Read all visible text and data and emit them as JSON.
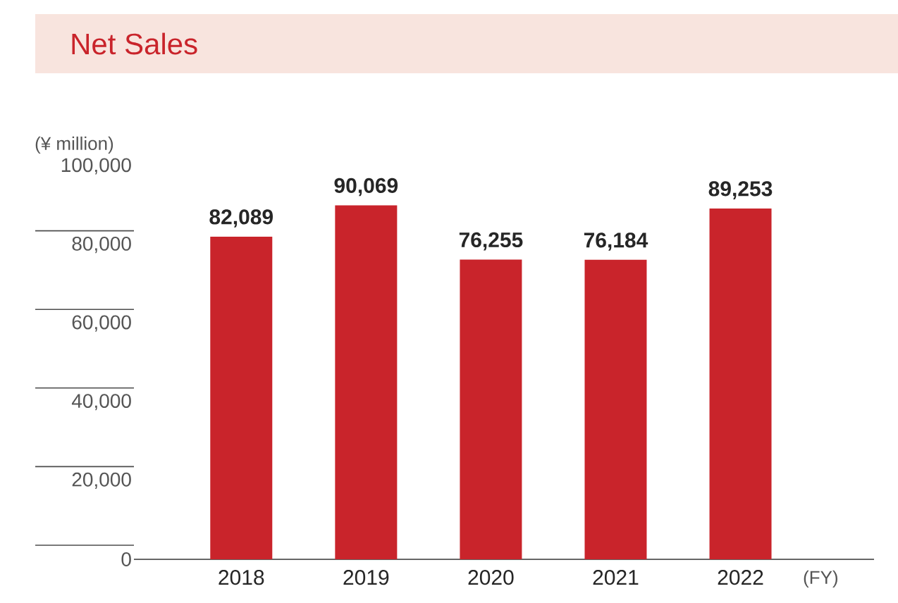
{
  "chart_data": {
    "type": "bar",
    "title": "Net Sales",
    "ylabel": "(¥ million)",
    "xlabel": "(FY)",
    "categories": [
      "2018",
      "2019",
      "2020",
      "2021",
      "2022"
    ],
    "values": [
      82089,
      90069,
      76255,
      76184,
      89253
    ],
    "value_labels": [
      "82,089",
      "90,069",
      "76,255",
      "76,184",
      "89,253"
    ],
    "color": "#c9242b",
    "ylim": [
      0,
      100000
    ],
    "yticks": [
      0,
      {
        "value": 20000,
        "label": "20,000"
      },
      {
        "value": 40000,
        "label": "40,000"
      },
      {
        "value": 60000,
        "label": "60,000"
      },
      {
        "value": 80000,
        "label": "80,000"
      },
      {
        "value": 100000,
        "label": "100,000"
      }
    ]
  }
}
